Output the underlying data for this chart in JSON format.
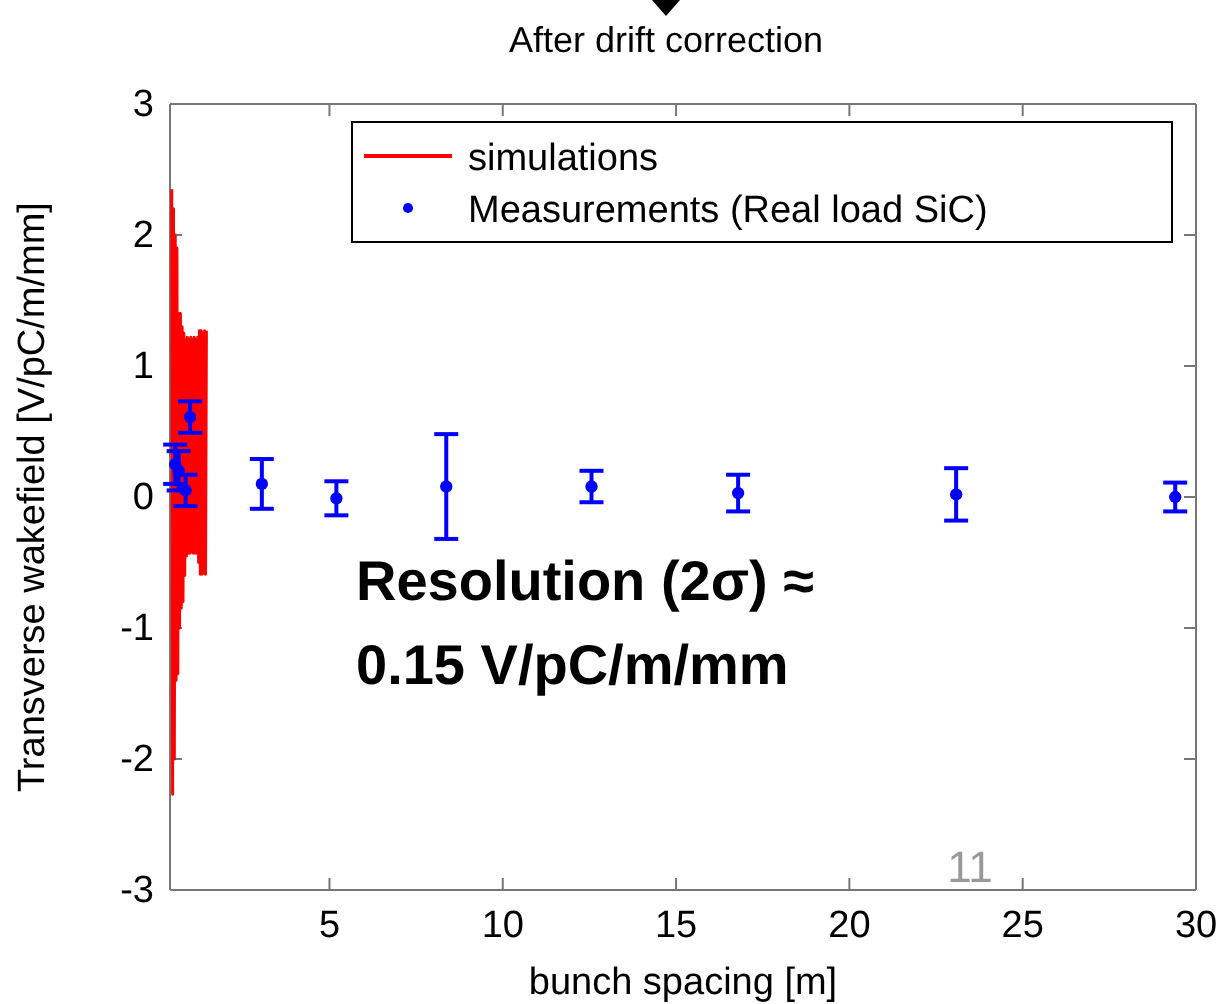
{
  "chart_data": {
    "type": "scatter",
    "title": "After drift correction",
    "xlabel": "bunch spacing [m]",
    "ylabel": "Transverse wakefield [V/pC/m/mm]",
    "xlim": [
      0.4,
      30
    ],
    "xticks": [
      5,
      10,
      15,
      20,
      25,
      30
    ],
    "ylim": [
      -3,
      3
    ],
    "yticks": [
      -3,
      -2,
      -1,
      0,
      1,
      2,
      3
    ],
    "grid": false,
    "legend": "top right",
    "annotations": [
      "Resolution (2σ) ≈\n0.15 V/pC/m/mm",
      "11"
    ],
    "series": [
      {
        "name": "simulations",
        "type": "line",
        "color": "#ff0000",
        "x": [
          0.45,
          0.475,
          0.5,
          0.525,
          0.55,
          0.575,
          0.6,
          0.625,
          0.65,
          0.675,
          0.7,
          0.725,
          0.75,
          0.775,
          0.8,
          0.825,
          0.85,
          0.875,
          0.9,
          0.925,
          0.95,
          0.975,
          1.0,
          1.025,
          1.05,
          1.075,
          1.1,
          1.125,
          1.15,
          1.175,
          1.2,
          1.225,
          1.25,
          1.275,
          1.3,
          1.325,
          1.35,
          1.375,
          1.4,
          1.425,
          1.45
        ],
        "values": [
          2.35,
          -2.27,
          2.2,
          -2.0,
          2.0,
          -1.4,
          1.9,
          -1.35,
          1.4,
          -1.0,
          1.4,
          -0.85,
          1.3,
          -0.8,
          1.25,
          -0.6,
          1.2,
          -0.45,
          1.22,
          -0.43,
          1.2,
          -0.43,
          1.22,
          -0.42,
          1.2,
          -0.43,
          1.22,
          -0.43,
          1.2,
          -0.43,
          1.22,
          -0.5,
          1.27,
          -0.59,
          1.27,
          -0.59,
          1.25,
          -0.58,
          1.27,
          -0.59,
          1.27
        ]
      },
      {
        "name": "Measurements (Real load SiC)",
        "marker": "circle",
        "color": "#0000ff",
        "x": [
          0.55,
          0.65,
          0.85,
          0.98,
          3.05,
          5.2,
          8.37,
          12.56,
          16.79,
          23.08,
          29.4
        ],
        "values": [
          0.25,
          0.2,
          0.05,
          0.61,
          0.1,
          -0.01,
          0.08,
          0.08,
          0.03,
          0.02,
          0.0
        ],
        "errors": [
          0.15,
          0.15,
          0.12,
          0.12,
          0.19,
          0.13,
          0.4,
          0.12,
          0.14,
          0.2,
          0.11
        ]
      }
    ]
  }
}
